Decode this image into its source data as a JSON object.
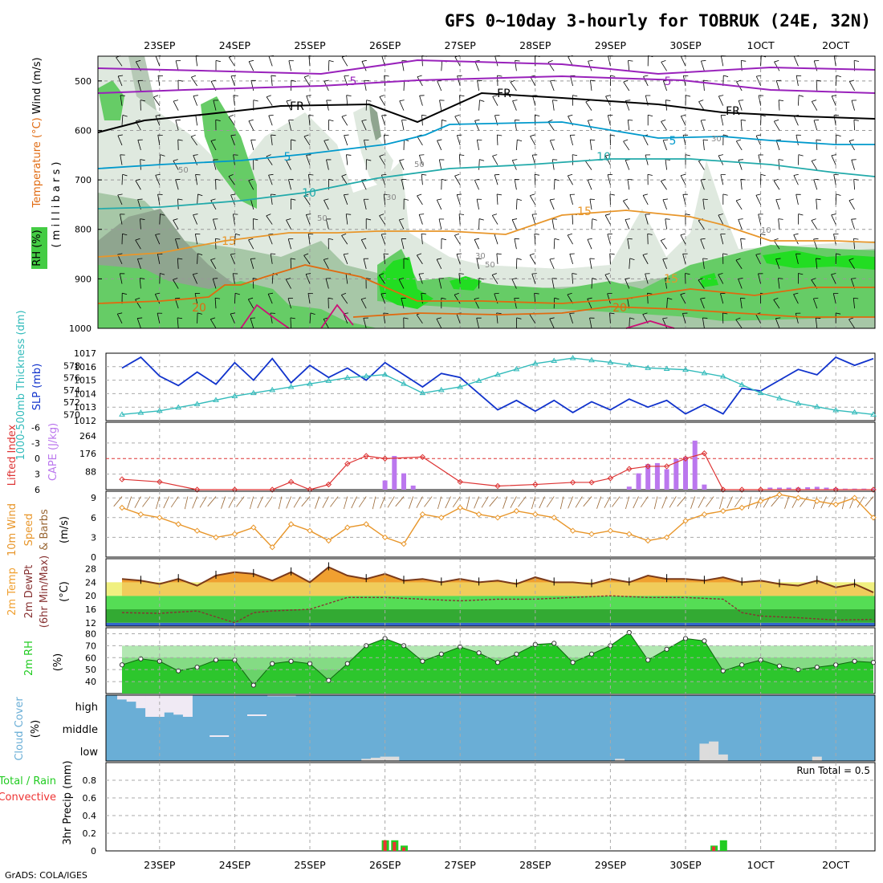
{
  "title": "GFS 0~10day 3-hourly for TOBRUK (24E, 32N)",
  "credit": "GrADS: COLA/IGES",
  "date_labels": [
    "23SEP",
    "24SEP",
    "25SEP",
    "26SEP",
    "27SEP",
    "28SEP",
    "29SEP",
    "30SEP",
    "1OCT",
    "2OCT"
  ],
  "colors": {
    "rh_light": "#dfe9df",
    "rh_mid": "#a7c7a7",
    "rh_gray": "#8fa58f",
    "rh_green": "#66cc66",
    "rh_bright": "#22dd22",
    "temp_orange": "#e8962a",
    "temp_dark_orange": "#e06a10",
    "temp_magenta": "#cc1177",
    "temp_cyan": "#0099cc",
    "temp_teal": "#22aaaa",
    "temp_purple": "#9922bb",
    "freezing": "#000000",
    "slp": "#1133cc",
    "thickness": "#33bbbb",
    "lifted_index": "#dd3333",
    "cape": "#bb77ee",
    "wind_speed": "#e8962a",
    "barb": "#996633",
    "tmax": "#f0a030",
    "dewpt": "#883333",
    "rh2m": "#22cc22",
    "cloud": "#6aaed6",
    "cloud_white": "#f0eaf4",
    "precip_total": "#22cc22",
    "precip_conv": "#ee3333"
  },
  "panels": {
    "upper": {
      "left_label_rh": "RH (%)",
      "left_label_temp": "Temperature (°C)",
      "left_label_wind": "Wind (m/s)",
      "left_label_mb": "( m i l l i b a r s )",
      "pressure_ticks": [
        "500",
        "600",
        "700",
        "800",
        "900",
        "1000"
      ],
      "contour_labels": {
        "purple": [
          "5",
          "5"
        ],
        "freezing": [
          "FR",
          "FR",
          "FR"
        ],
        "cyan": [
          "5",
          "5",
          "10",
          "10"
        ],
        "orange": [
          "15",
          "15",
          "15",
          "20",
          "20"
        ],
        "rh": [
          "50",
          "50",
          "50",
          "30",
          "30",
          "50",
          "30",
          "10"
        ]
      }
    },
    "slp": {
      "label_slp": "SLP (mb)",
      "label_thick": "1000-500mb Thickness (dm)",
      "slp_ticks": [
        "1017",
        "1016",
        "1015",
        "1014",
        "1013",
        "1012"
      ],
      "thick_ticks": [
        "578",
        "576",
        "574",
        "572",
        "570"
      ]
    },
    "cape": {
      "label_li": "Lifted Index",
      "label_cape": "CAPE (J/kg)",
      "li_ticks": [
        "-6",
        "-3",
        "0",
        "3",
        "6"
      ],
      "cape_ticks": [
        "264",
        "176",
        "88"
      ]
    },
    "wind": {
      "label_main": "10m Wind",
      "label_speed": "Speed",
      "label_barbs": "& Barbs",
      "unit": "(m/s)",
      "ticks": [
        "9",
        "6",
        "3",
        "0"
      ]
    },
    "temp": {
      "label_1": "2m Temp",
      "label_2": "2m DewPt",
      "label_3": "(6hr Min/Max)",
      "unit": "(°C)",
      "ticks": [
        "28",
        "24",
        "20",
        "16",
        "12"
      ]
    },
    "rh": {
      "label": "2m RH",
      "unit": "(%)",
      "ticks": [
        "80",
        "70",
        "60",
        "50",
        "40"
      ]
    },
    "cloud": {
      "label": "Cloud Cover",
      "unit": "(%)",
      "levels": [
        "high",
        "middle",
        "low"
      ]
    },
    "precip": {
      "label_left": "Total / Rain",
      "label_conv": "Convective",
      "label_axis": "3hr Precip (mm)",
      "ticks": [
        "0.8",
        "0.6",
        "0.4",
        "0.2",
        "0"
      ],
      "run_total": "Run Total = 0.5"
    }
  },
  "chart_data": [
    {
      "type": "line",
      "name": "SLP",
      "unit": "mb",
      "ylim": [
        1012,
        1017
      ],
      "x_unit": "hours since 22SEP 12Z",
      "x": [
        0,
        6,
        12,
        18,
        24,
        30,
        36,
        42,
        48,
        54,
        60,
        66,
        72,
        78,
        84,
        90,
        96,
        102,
        108,
        114,
        120,
        126,
        132,
        138,
        144,
        150,
        156,
        162,
        168,
        174,
        180,
        186,
        192,
        198,
        204,
        210,
        216,
        222,
        228,
        234,
        240
      ],
      "values": [
        1015.9,
        1016.7,
        1015.3,
        1014.6,
        1015.6,
        1014.7,
        1016.3,
        1015.0,
        1016.6,
        1014.8,
        1016.1,
        1015.2,
        1015.9,
        1015.0,
        1016.3,
        1015.4,
        1014.5,
        1015.5,
        1015.2,
        1014.0,
        1012.8,
        1013.5,
        1012.7,
        1013.5,
        1012.6,
        1013.4,
        1012.8,
        1013.6,
        1013.0,
        1013.5,
        1012.5,
        1013.2,
        1012.5,
        1014.4,
        1014.2,
        1015.0,
        1015.8,
        1015.4,
        1016.7,
        1016.1,
        1016.6
      ]
    },
    {
      "type": "line",
      "name": "Thickness",
      "unit": "dm",
      "ylim": [
        569,
        580
      ],
      "x_unit": "hours since 22SEP 12Z",
      "x": [
        0,
        12,
        24,
        36,
        48,
        60,
        72,
        84,
        96,
        108,
        120,
        132,
        144,
        156,
        168,
        180,
        192,
        204,
        216,
        228,
        240
      ],
      "values": [
        570.0,
        570.6,
        571.7,
        573.0,
        574.0,
        575.0,
        576.0,
        576.5,
        573.5,
        574.5,
        576.5,
        578.3,
        579.2,
        578.5,
        577.6,
        577.3,
        576.2,
        573.5,
        571.8,
        570.7,
        570.0
      ]
    },
    {
      "type": "line",
      "name": "Lifted Index",
      "ylim": [
        6,
        -6
      ],
      "x_unit": "hours since 22SEP 12Z",
      "x": [
        0,
        12,
        24,
        36,
        48,
        54,
        60,
        66,
        72,
        78,
        84,
        96,
        108,
        120,
        132,
        144,
        150,
        156,
        162,
        168,
        174,
        180,
        186,
        192,
        198,
        204,
        216,
        228,
        240
      ],
      "values": [
        4.0,
        4.5,
        6.0,
        6.0,
        6.0,
        4.5,
        6.0,
        5.0,
        1.0,
        -0.5,
        0.0,
        -0.3,
        4.5,
        5.3,
        5.0,
        4.6,
        4.6,
        3.8,
        2.0,
        1.5,
        1.5,
        0.0,
        -1.0,
        6.0,
        6.0,
        6.0,
        6.0,
        6.0,
        6.0
      ]
    },
    {
      "type": "bar",
      "name": "CAPE",
      "unit": "J/kg",
      "ylim": [
        0,
        330
      ],
      "x_unit": "hours since 22SEP 12Z",
      "x": [
        84,
        87,
        90,
        93,
        162,
        165,
        168,
        171,
        174,
        177,
        180,
        183,
        186,
        189,
        192,
        195,
        198,
        201,
        204,
        207,
        210,
        213,
        216,
        219,
        222,
        225,
        228,
        231,
        234,
        237,
        240
      ],
      "values": [
        45,
        165,
        80,
        20,
        15,
        80,
        125,
        130,
        100,
        150,
        160,
        240,
        25,
        0,
        0,
        0,
        0,
        0,
        0,
        10,
        10,
        10,
        10,
        12,
        14,
        10,
        8,
        5,
        5,
        5,
        5
      ]
    },
    {
      "type": "line",
      "name": "10m Wind Speed",
      "unit": "m/s",
      "ylim": [
        0,
        10
      ],
      "x_unit": "hours since 22SEP 12Z",
      "x": [
        0,
        6,
        12,
        18,
        24,
        30,
        36,
        42,
        48,
        54,
        60,
        66,
        72,
        78,
        84,
        90,
        96,
        102,
        108,
        114,
        120,
        126,
        132,
        138,
        144,
        150,
        156,
        162,
        168,
        174,
        180,
        186,
        192,
        198,
        204,
        210,
        216,
        222,
        228,
        234,
        240
      ],
      "values": [
        7.5,
        6.5,
        6.0,
        5.0,
        4.0,
        3.0,
        3.5,
        4.5,
        1.5,
        5.0,
        4.0,
        2.5,
        4.5,
        5.0,
        3.0,
        2.0,
        6.5,
        6.0,
        7.5,
        6.5,
        6.0,
        7.0,
        6.5,
        6.0,
        4.0,
        3.5,
        4.0,
        3.5,
        2.5,
        3.0,
        5.5,
        6.5,
        7.0,
        7.5,
        8.5,
        9.5,
        9.0,
        8.5,
        8.0,
        9.0,
        6.0
      ]
    },
    {
      "type": "area",
      "name": "2m Temp",
      "unit": "°C",
      "ylim": [
        11,
        31
      ],
      "x_unit": "hours since 22SEP 12Z",
      "x": [
        0,
        6,
        12,
        18,
        24,
        30,
        36,
        42,
        48,
        54,
        60,
        66,
        72,
        78,
        84,
        90,
        96,
        102,
        108,
        114,
        120,
        126,
        132,
        138,
        144,
        150,
        156,
        162,
        168,
        174,
        180,
        186,
        192,
        198,
        204,
        210,
        216,
        222,
        228,
        234,
        240
      ],
      "values": [
        25.0,
        24.5,
        23.5,
        25.0,
        23.0,
        26.0,
        27.0,
        26.5,
        24.5,
        27.0,
        24.0,
        28.5,
        26.0,
        25.0,
        26.5,
        24.5,
        25.0,
        24.0,
        25.0,
        24.0,
        24.5,
        23.5,
        25.5,
        24.0,
        24.0,
        23.5,
        25.0,
        24.0,
        26.0,
        25.0,
        25.0,
        24.5,
        25.5,
        24.0,
        24.5,
        23.5,
        23.0,
        24.5,
        22.5,
        23.5,
        21.0
      ]
    },
    {
      "type": "line",
      "name": "2m DewPt",
      "unit": "°C",
      "ylim": [
        11,
        31
      ],
      "x_unit": "hours since 22SEP 12Z",
      "x": [
        0,
        12,
        24,
        36,
        42,
        48,
        60,
        72,
        84,
        96,
        108,
        120,
        132,
        144,
        156,
        168,
        180,
        192,
        198,
        204,
        216,
        228,
        240
      ],
      "values": [
        15.0,
        14.8,
        15.5,
        12.0,
        15.0,
        15.5,
        16.0,
        19.5,
        19.5,
        19.0,
        18.5,
        19.0,
        19.0,
        19.5,
        20.0,
        19.5,
        19.5,
        19.0,
        15.0,
        14.0,
        13.5,
        12.8,
        13.0
      ]
    },
    {
      "type": "area",
      "name": "2m RH",
      "unit": "%",
      "ylim": [
        30,
        85
      ],
      "x_unit": "hours since 22SEP 12Z",
      "x": [
        0,
        6,
        12,
        18,
        24,
        30,
        36,
        42,
        48,
        54,
        60,
        66,
        72,
        78,
        84,
        90,
        96,
        102,
        108,
        114,
        120,
        126,
        132,
        138,
        144,
        150,
        156,
        162,
        168,
        174,
        180,
        186,
        192,
        198,
        204,
        210,
        216,
        222,
        228,
        234,
        240
      ],
      "values": [
        54,
        59,
        57,
        49,
        52,
        58,
        58,
        37,
        55,
        57,
        55,
        41,
        55,
        70,
        76,
        70,
        57,
        63,
        69,
        64,
        56,
        63,
        71,
        72,
        56,
        63,
        70,
        81,
        58,
        67,
        76,
        74,
        49,
        54,
        58,
        53,
        50,
        52,
        54,
        57,
        56
      ]
    },
    {
      "type": "bar",
      "name": "3hr Precip Total",
      "unit": "mm",
      "ylim": [
        0,
        1.0
      ],
      "x_unit": "hours since 22SEP 12Z",
      "x": [
        84,
        87,
        90,
        189,
        192
      ],
      "values": [
        0.12,
        0.12,
        0.06,
        0.06,
        0.12
      ]
    },
    {
      "type": "bar",
      "name": "3hr Precip Convective",
      "unit": "mm",
      "ylim": [
        0,
        1.0
      ],
      "x_unit": "hours since 22SEP 12Z",
      "x": [
        84,
        87,
        90,
        189
      ],
      "values": [
        0.12,
        0.1,
        0.04,
        0.05
      ]
    },
    {
      "type": "bar",
      "name": "Cloud Cover High",
      "unit": "%",
      "x_unit": "hours since 22SEP 12Z",
      "x": [
        0,
        3,
        6,
        9,
        12,
        15,
        18,
        21,
        24,
        27,
        30,
        33,
        36,
        39,
        42,
        45,
        48,
        51,
        54
      ],
      "values": [
        20,
        30,
        60,
        100,
        100,
        80,
        90,
        100,
        0,
        0,
        0,
        0,
        0,
        0,
        0,
        0,
        5,
        5,
        5
      ]
    },
    {
      "type": "bar",
      "name": "Cloud Cover Low",
      "unit": "%",
      "x_unit": "hours since 22SEP 12Z",
      "x": [
        78,
        81,
        84,
        87,
        159,
        186,
        189,
        192,
        222
      ],
      "values": [
        10,
        15,
        20,
        20,
        10,
        80,
        90,
        30,
        20
      ]
    }
  ]
}
